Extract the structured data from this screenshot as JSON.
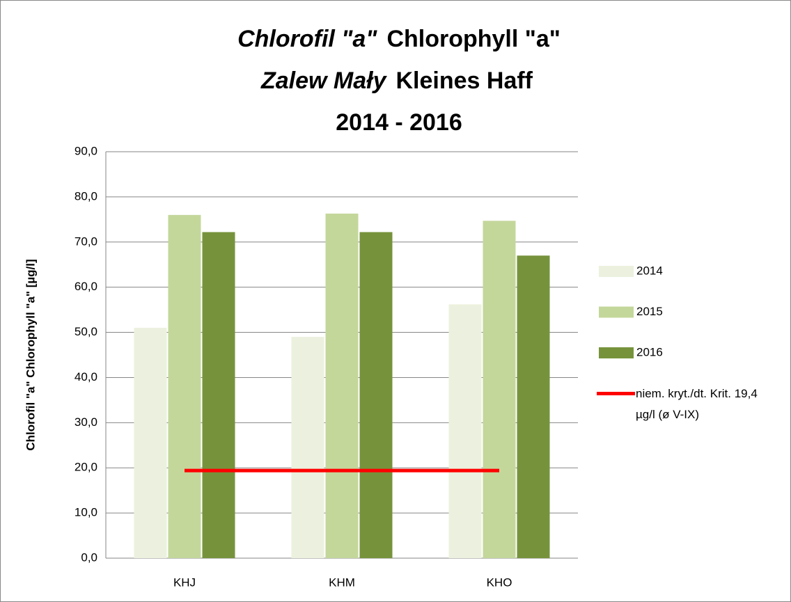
{
  "chart_data": {
    "type": "bar",
    "title": [
      "Chlorofil \"a\"",
      "Chlorophyll \"a\"",
      "Zalew Mały",
      "Kleines Haff",
      "2014 - 2016"
    ],
    "y_label": "Chlorofil \"a\"  Chlorophyll \"a\" [µg/l]",
    "categories": [
      "KHJ",
      "KHM",
      "KHO"
    ],
    "series": [
      {
        "name": "2014",
        "color": "#ebf1de",
        "values": [
          51.0,
          49.0,
          56.2
        ]
      },
      {
        "name": "2015",
        "color": "#c4d79b",
        "values": [
          76.0,
          76.3,
          74.7
        ]
      },
      {
        "name": "2016",
        "color": "#76933c",
        "values": [
          72.2,
          72.2,
          67.0
        ]
      },
      {
        "name": "niem. kryt./dt. Krit. 19,4 µg/l (ø V-IX)",
        "color": "#ff0000",
        "type": "line",
        "values": [
          19.4,
          19.4,
          19.4
        ]
      }
    ],
    "ylim": [
      0,
      90
    ],
    "yticks": [
      {
        "value": 0,
        "label": "0,0"
      },
      {
        "value": 10,
        "label": "10,0"
      },
      {
        "value": 20,
        "label": "20,0"
      },
      {
        "value": 30,
        "label": "30,0"
      },
      {
        "value": 40,
        "label": "40,0"
      },
      {
        "value": 50,
        "label": "50,0"
      },
      {
        "value": 60,
        "label": "60,0"
      },
      {
        "value": 70,
        "label": "70,0"
      },
      {
        "value": 80,
        "label": "80,0"
      },
      {
        "value": 90,
        "label": "90,0"
      }
    ],
    "grid": true,
    "legend": "right"
  }
}
